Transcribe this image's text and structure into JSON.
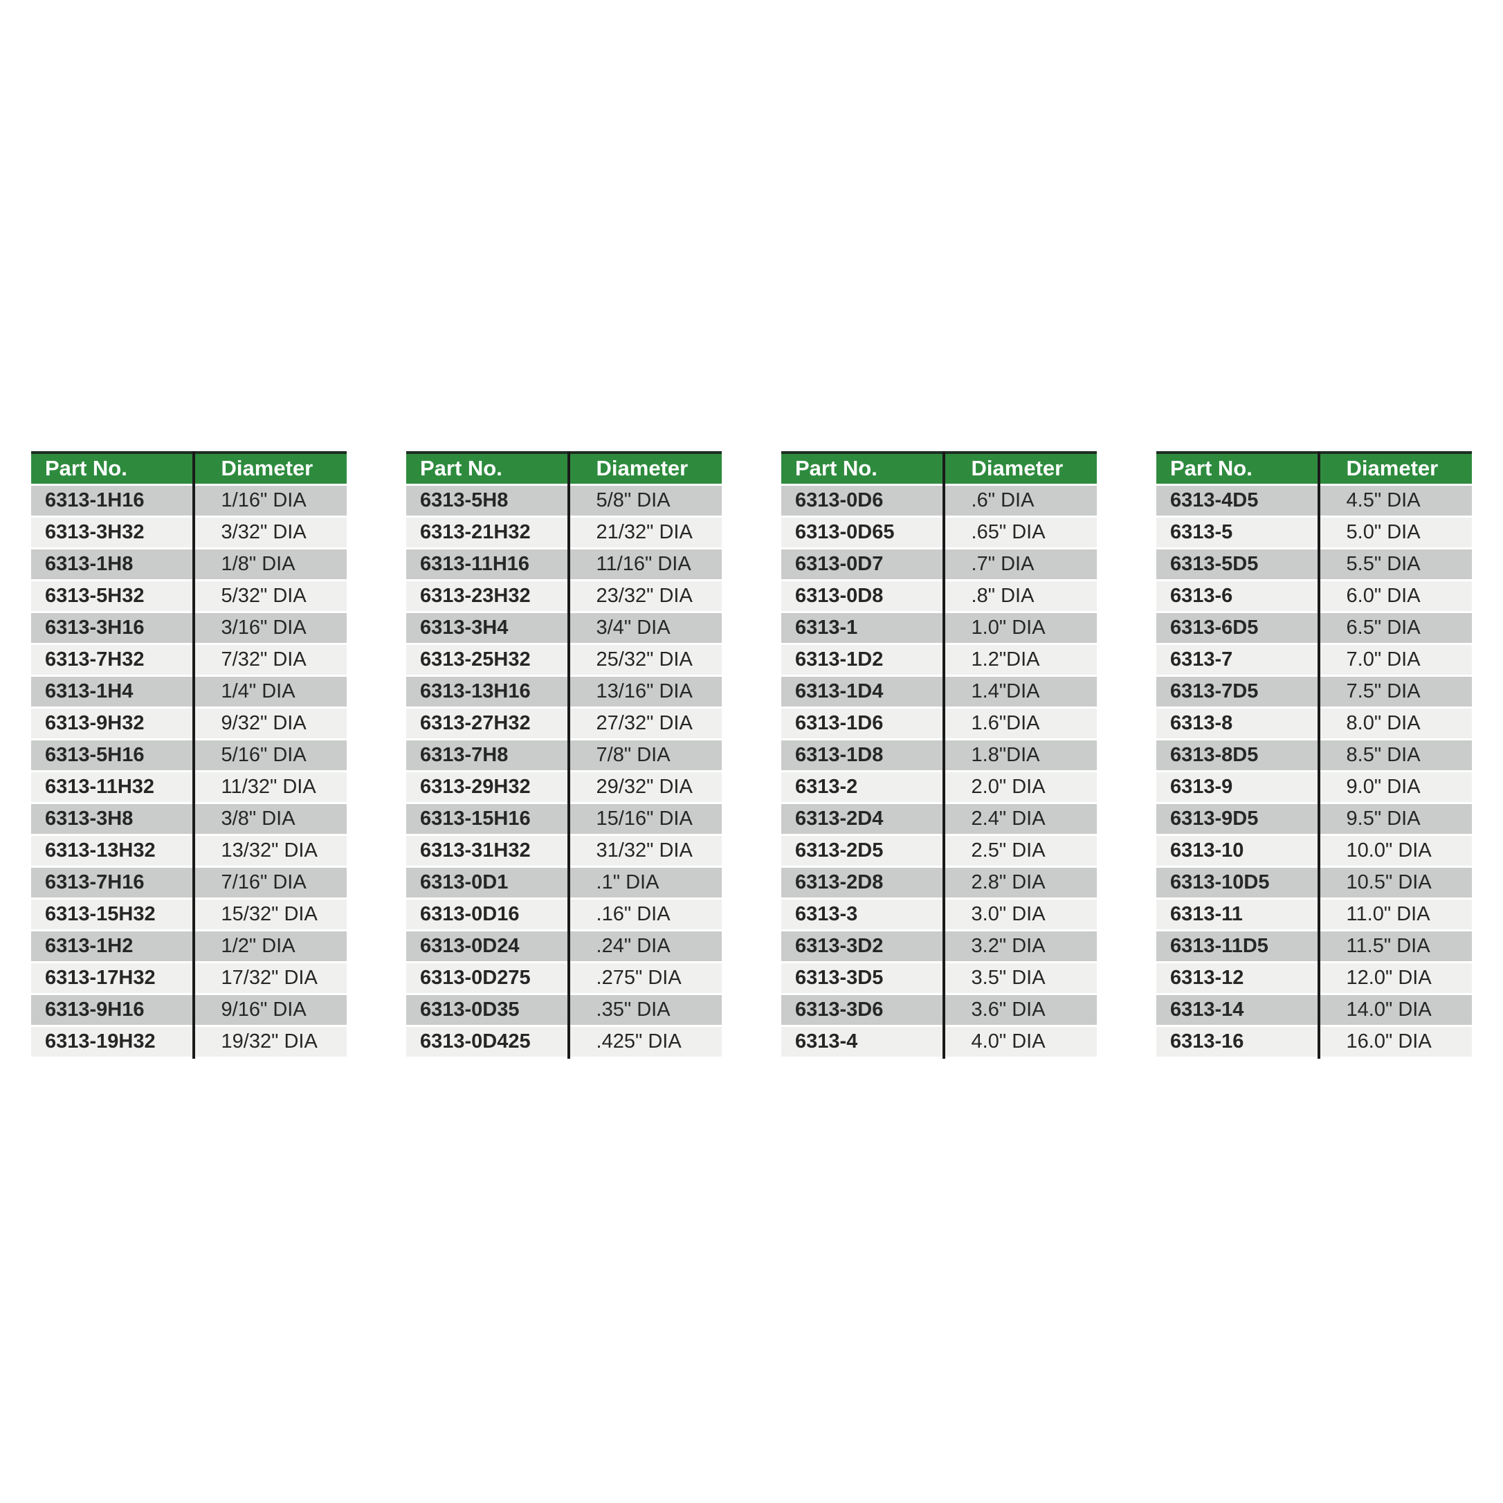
{
  "style": {
    "header_bg": "#2e8b3e",
    "header_text": "#ffffff",
    "row_dark_bg": "#c9ccca",
    "row_light_bg": "#f0f1ef",
    "divider_color": "#1a1a1a",
    "cell_text": "#262626",
    "page_bg": "#ffffff"
  },
  "tables": [
    {
      "headers": [
        "Part No.",
        "Diameter"
      ],
      "rows": [
        [
          "6313-1H16",
          "1/16\" DIA"
        ],
        [
          "6313-3H32",
          "3/32\" DIA"
        ],
        [
          "6313-1H8",
          "1/8\" DIA"
        ],
        [
          "6313-5H32",
          "5/32\" DIA"
        ],
        [
          "6313-3H16",
          "3/16\" DIA"
        ],
        [
          "6313-7H32",
          "7/32\" DIA"
        ],
        [
          "6313-1H4",
          "1/4\" DIA"
        ],
        [
          "6313-9H32",
          "9/32\" DIA"
        ],
        [
          "6313-5H16",
          "5/16\" DIA"
        ],
        [
          "6313-11H32",
          "11/32\" DIA"
        ],
        [
          "6313-3H8",
          "3/8\" DIA"
        ],
        [
          "6313-13H32",
          "13/32\" DIA"
        ],
        [
          "6313-7H16",
          "7/16\" DIA"
        ],
        [
          "6313-15H32",
          "15/32\" DIA"
        ],
        [
          "6313-1H2",
          "1/2\" DIA"
        ],
        [
          "6313-17H32",
          "17/32\" DIA"
        ],
        [
          "6313-9H16",
          "9/16\" DIA"
        ],
        [
          "6313-19H32",
          "19/32\" DIA"
        ]
      ]
    },
    {
      "headers": [
        "Part No.",
        "Diameter"
      ],
      "rows": [
        [
          "6313-5H8",
          "5/8\" DIA"
        ],
        [
          "6313-21H32",
          "21/32\" DIA"
        ],
        [
          "6313-11H16",
          "11/16\" DIA"
        ],
        [
          "6313-23H32",
          "23/32\" DIA"
        ],
        [
          "6313-3H4",
          "3/4\" DIA"
        ],
        [
          "6313-25H32",
          "25/32\" DIA"
        ],
        [
          "6313-13H16",
          "13/16\" DIA"
        ],
        [
          "6313-27H32",
          "27/32\" DIA"
        ],
        [
          "6313-7H8",
          "7/8\" DIA"
        ],
        [
          "6313-29H32",
          "29/32\" DIA"
        ],
        [
          "6313-15H16",
          "15/16\" DIA"
        ],
        [
          "6313-31H32",
          "31/32\" DIA"
        ],
        [
          "6313-0D1",
          ".1\" DIA"
        ],
        [
          "6313-0D16",
          ".16\" DIA"
        ],
        [
          "6313-0D24",
          ".24\" DIA"
        ],
        [
          "6313-0D275",
          ".275\" DIA"
        ],
        [
          "6313-0D35",
          ".35\" DIA"
        ],
        [
          "6313-0D425",
          ".425\" DIA"
        ]
      ]
    },
    {
      "headers": [
        "Part No.",
        "Diameter"
      ],
      "rows": [
        [
          "6313-0D6",
          ".6\" DIA"
        ],
        [
          "6313-0D65",
          ".65\" DIA"
        ],
        [
          "6313-0D7",
          ".7\" DIA"
        ],
        [
          "6313-0D8",
          ".8\" DIA"
        ],
        [
          "6313-1",
          "1.0\" DIA"
        ],
        [
          "6313-1D2",
          "1.2\"DIA"
        ],
        [
          "6313-1D4",
          "1.4\"DIA"
        ],
        [
          "6313-1D6",
          "1.6\"DIA"
        ],
        [
          "6313-1D8",
          "1.8\"DIA"
        ],
        [
          "6313-2",
          "2.0\" DIA"
        ],
        [
          "6313-2D4",
          "2.4\" DIA"
        ],
        [
          "6313-2D5",
          "2.5\" DIA"
        ],
        [
          "6313-2D8",
          "2.8\" DIA"
        ],
        [
          "6313-3",
          "3.0\" DIA"
        ],
        [
          "6313-3D2",
          "3.2\" DIA"
        ],
        [
          "6313-3D5",
          "3.5\" DIA"
        ],
        [
          "6313-3D6",
          "3.6\" DIA"
        ],
        [
          "6313-4",
          "4.0\" DIA"
        ]
      ]
    },
    {
      "headers": [
        "Part No.",
        "Diameter"
      ],
      "rows": [
        [
          "6313-4D5",
          "4.5\" DIA"
        ],
        [
          "6313-5",
          "5.0\" DIA"
        ],
        [
          "6313-5D5",
          "5.5\" DIA"
        ],
        [
          "6313-6",
          "6.0\" DIA"
        ],
        [
          "6313-6D5",
          "6.5\" DIA"
        ],
        [
          "6313-7",
          "7.0\" DIA"
        ],
        [
          "6313-7D5",
          "7.5\" DIA"
        ],
        [
          "6313-8",
          "8.0\" DIA"
        ],
        [
          "6313-8D5",
          "8.5\" DIA"
        ],
        [
          "6313-9",
          "9.0\" DIA"
        ],
        [
          "6313-9D5",
          "9.5\" DIA"
        ],
        [
          "6313-10",
          "10.0\" DIA"
        ],
        [
          "6313-10D5",
          "10.5\" DIA"
        ],
        [
          "6313-11",
          "11.0\" DIA"
        ],
        [
          "6313-11D5",
          "11.5\" DIA"
        ],
        [
          "6313-12",
          "12.0\" DIA"
        ],
        [
          "6313-14",
          "14.0\" DIA"
        ],
        [
          "6313-16",
          "16.0\" DIA"
        ]
      ]
    }
  ]
}
